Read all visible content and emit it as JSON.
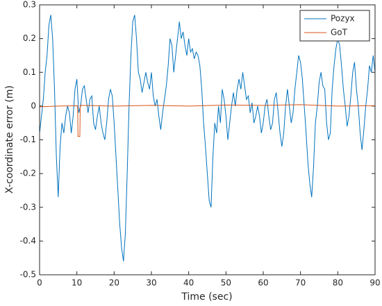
{
  "chart_data": {
    "type": "line",
    "xlabel": "Time (sec)",
    "ylabel": "X-coordinate error (m)",
    "xlim": [
      0,
      90
    ],
    "xticks": [
      0,
      10,
      20,
      30,
      40,
      50,
      60,
      70,
      80,
      90
    ],
    "ylim": [
      -0.5,
      0.3
    ],
    "yticks": [
      -0.5,
      -0.4,
      -0.3,
      -0.2,
      -0.1,
      0,
      0.1,
      0.2,
      0.3
    ],
    "legend": "northeast",
    "series": [
      {
        "name": "Pozyx",
        "color": "#0072bd",
        "x": [
          0,
          0.5,
          1,
          1.5,
          2,
          2.5,
          3,
          3.5,
          4,
          4.5,
          5,
          5.5,
          6,
          6.5,
          7,
          7.5,
          8,
          8.5,
          9,
          9.5,
          10,
          10.5,
          11,
          11.5,
          12,
          12.5,
          13,
          13.5,
          14,
          14.5,
          15,
          15.5,
          16,
          16.5,
          17,
          17.5,
          18,
          18.5,
          19,
          19.5,
          20,
          20.5,
          21,
          21.5,
          22,
          22.5,
          23,
          23.5,
          24,
          24.5,
          25,
          25.5,
          26,
          26.5,
          27,
          27.5,
          28,
          28.5,
          29,
          29.5,
          30,
          30.5,
          31,
          31.5,
          32,
          32.5,
          33,
          33.5,
          34,
          34.5,
          35,
          35.5,
          36,
          36.5,
          37,
          37.5,
          38,
          38.5,
          39,
          39.5,
          40,
          40.5,
          41,
          41.5,
          42,
          42.5,
          43,
          43.5,
          44,
          44.5,
          45,
          45.5,
          46,
          46.5,
          47,
          47.5,
          48,
          48.5,
          49,
          49.5,
          50,
          50.5,
          51,
          51.5,
          52,
          52.5,
          53,
          53.5,
          54,
          54.5,
          55,
          55.5,
          56,
          56.5,
          57,
          57.5,
          58,
          58.5,
          59,
          59.5,
          60,
          60.5,
          61,
          61.5,
          62,
          62.5,
          63,
          63.5,
          64,
          64.5,
          65,
          65.5,
          66,
          66.5,
          67,
          67.5,
          68,
          68.5,
          69,
          69.5,
          70,
          70.5,
          71,
          71.5,
          72,
          72.5,
          73,
          73.5,
          74,
          74.5,
          75,
          75.5,
          76,
          76.5,
          77,
          77.5,
          78,
          78.5,
          79,
          79.5,
          80,
          80.5,
          81,
          81.5,
          82,
          82.5,
          83,
          83.5,
          84,
          84.5,
          85,
          85.5,
          86,
          86.5,
          87,
          87.5,
          88,
          88.5,
          89,
          89.5,
          90
        ],
        "values": [
          -0.08,
          -0.03,
          0.02,
          0.1,
          0.15,
          0.24,
          0.27,
          0.2,
          0.05,
          -0.15,
          -0.27,
          -0.12,
          -0.05,
          -0.08,
          -0.03,
          0,
          -0.02,
          -0.08,
          -0.03,
          0.05,
          0.08,
          -0.02,
          0,
          0.05,
          0.06,
          0.02,
          -0.02,
          0.02,
          0.03,
          -0.05,
          -0.07,
          -0.03,
          0,
          -0.05,
          -0.08,
          -0.1,
          -0.05,
          0.02,
          0.05,
          0.03,
          -0.05,
          -0.15,
          -0.25,
          -0.35,
          -0.42,
          -0.46,
          -0.38,
          -0.2,
          0,
          0.15,
          0.25,
          0.27,
          0.2,
          0.1,
          0.08,
          0.04,
          0.07,
          0.1,
          0.07,
          0.05,
          0.1,
          0.03,
          0,
          0.02,
          -0.03,
          -0.07,
          -0.02,
          0.02,
          0.06,
          0.12,
          0.2,
          0.18,
          0.1,
          0.15,
          0.2,
          0.25,
          0.2,
          0.22,
          0.18,
          0.15,
          0.2,
          0.16,
          0.17,
          0.14,
          0.16,
          0.15,
          0.12,
          0.05,
          -0.05,
          -0.12,
          -0.2,
          -0.28,
          -0.3,
          -0.15,
          -0.05,
          -0.08,
          0,
          -0.05,
          0.05,
          0.02,
          -0.03,
          -0.1,
          -0.05,
          0,
          0.04,
          0,
          0.05,
          0.08,
          0.05,
          0.1,
          0.06,
          0.02,
          0.03,
          -0.02,
          0.01,
          -0.05,
          -0.03,
          0,
          -0.03,
          -0.08,
          -0.05,
          0,
          0.02,
          -0.03,
          -0.07,
          -0.05,
          0.02,
          0.04,
          -0.02,
          -0.08,
          -0.12,
          -0.08,
          0,
          0.05,
          0,
          -0.05,
          -0.02,
          0.05,
          0.1,
          0.15,
          0.13,
          0.08,
          0,
          -0.08,
          -0.17,
          -0.23,
          -0.27,
          -0.18,
          -0.05,
          0,
          0.07,
          0.1,
          0.06,
          0.05,
          -0.05,
          -0.1,
          -0.08,
          0.05,
          0.12,
          0.17,
          0.2,
          0.18,
          0.12,
          0.05,
          0,
          -0.06,
          -0.03,
          0.03,
          0.1,
          0.13,
          0.05,
          0,
          -0.08,
          -0.13,
          -0.07,
          0,
          0.05,
          0.12,
          0.1,
          0.15,
          0.1
        ]
      },
      {
        "name": "GoT",
        "color": "#d95319",
        "x": [
          0,
          5,
          10.2,
          10.3,
          10.8,
          10.9,
          20,
          30,
          40,
          50,
          60,
          70,
          80,
          90
        ],
        "values": [
          -0.002,
          0,
          0.001,
          -0.09,
          -0.09,
          0.002,
          0,
          0.002,
          0,
          0.003,
          0.002,
          0.004,
          0,
          0.001
        ]
      }
    ]
  }
}
